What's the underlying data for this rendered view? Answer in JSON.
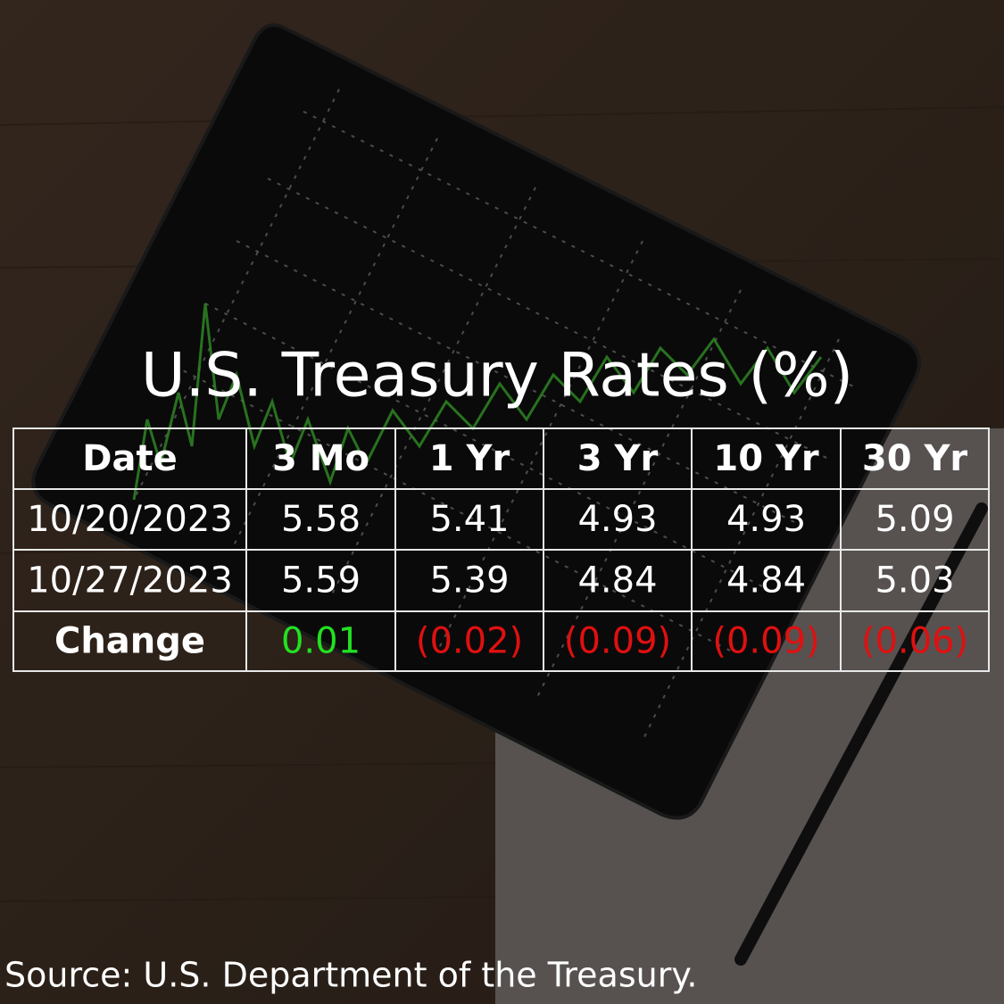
{
  "title": "U.S. Treasury Rates (%)",
  "table": {
    "header": [
      "Date",
      "3 Mo",
      "1 Yr",
      "3 Yr",
      "10 Yr",
      "30 Yr"
    ],
    "rows": [
      [
        "10/20/2023",
        "5.58",
        "5.41",
        "4.93",
        "4.93",
        "5.09"
      ],
      [
        "10/27/2023",
        "5.59",
        "5.39",
        "4.84",
        "4.84",
        "5.03"
      ],
      [
        "Change",
        "0.01",
        "(0.02)",
        "(0.09)",
        "(0.09)",
        "(0.06)"
      ]
    ]
  },
  "source": "Source: U.S. Department of the Treasury."
}
